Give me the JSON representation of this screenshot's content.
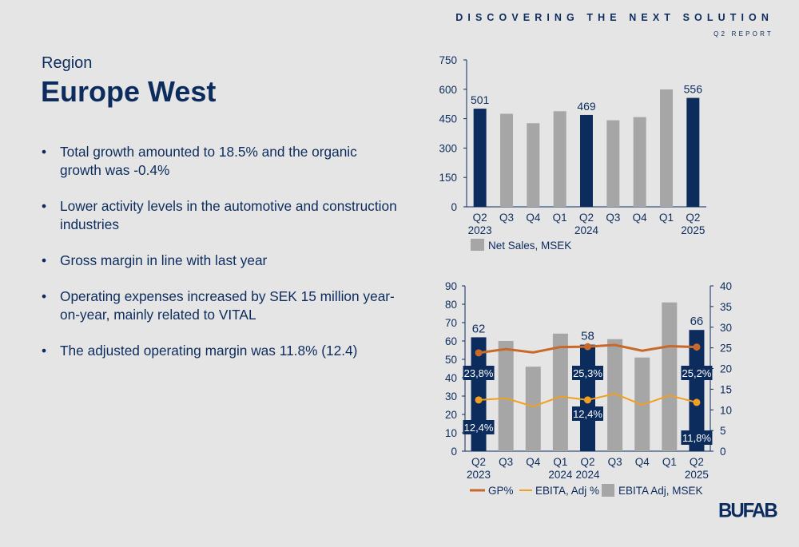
{
  "header": {
    "tagline": "DISCOVERING THE NEXT SOLUTION",
    "report": "Q2 REPORT"
  },
  "slide": {
    "region_label": "Region",
    "title": "Europe West",
    "bullets": [
      {
        "lines": [
          "Total growth amounted to 18.5% and the organic",
          "growth was -0.4%"
        ]
      },
      {
        "lines": [
          "Lower activity levels in the automotive and construction",
          "industries"
        ]
      },
      {
        "lines": [
          "Gross margin in line with last year"
        ]
      },
      {
        "lines": [
          "Operating expenses increased by SEK 15 million year-",
          "on-year, mainly related to VITAL"
        ]
      },
      {
        "lines": [
          "The adjusted operating margin was 11.8% (12.4)"
        ]
      }
    ],
    "bullet_glyph": "•"
  },
  "logo": {
    "text": "BUFAB"
  },
  "colors": {
    "navy": "#0d2c5e",
    "gray_bar": "#a6a6a6",
    "gp_line": "#c8692c",
    "ebita_line": "#f0a020",
    "background": "#e5e5e5"
  },
  "chart_data": [
    {
      "type": "bar",
      "title": "",
      "categories": [
        "Q2 2023",
        "Q3",
        "Q4",
        "Q1",
        "Q2 2024",
        "Q3",
        "Q4",
        "Q1",
        "Q2 2025"
      ],
      "category_lines": [
        [
          "Q2",
          "2023"
        ],
        [
          "Q3",
          ""
        ],
        [
          "Q4",
          ""
        ],
        [
          "Q1",
          ""
        ],
        [
          "Q2",
          "2024"
        ],
        [
          "Q3",
          ""
        ],
        [
          "Q4",
          ""
        ],
        [
          "Q1",
          ""
        ],
        [
          "Q2",
          "2025"
        ]
      ],
      "series": [
        {
          "name": "Net Sales, MSEK",
          "values": [
            501,
            475,
            427,
            488,
            469,
            442,
            458,
            599,
            556
          ]
        }
      ],
      "highlight": [
        true,
        false,
        false,
        false,
        true,
        false,
        false,
        false,
        true
      ],
      "data_labels": [
        "501",
        "",
        "",
        "",
        "469",
        "",
        "",
        "",
        "556"
      ],
      "ylim": [
        0,
        750
      ],
      "yticks": [
        0,
        150,
        300,
        450,
        600,
        750
      ],
      "xlabel": "",
      "ylabel": "",
      "legend": {
        "position": "bottom-left",
        "entries": [
          "Net Sales, MSEK"
        ]
      },
      "grid": false
    },
    {
      "type": "bar",
      "title": "",
      "categories": [
        "Q2 2023",
        "Q3",
        "Q4",
        "Q1 2024",
        "Q2 2024",
        "Q3",
        "Q4",
        "Q1",
        "Q2 2025"
      ],
      "category_lines": [
        [
          "Q2",
          "2023"
        ],
        [
          "Q3",
          ""
        ],
        [
          "Q4",
          ""
        ],
        [
          "Q1",
          "2024"
        ],
        [
          "Q2",
          "2024"
        ],
        [
          "Q3",
          ""
        ],
        [
          "Q4",
          ""
        ],
        [
          "Q1",
          ""
        ],
        [
          "Q2",
          "2025"
        ]
      ],
      "series": [
        {
          "name": "EBITA Adj, MSEK",
          "type": "bar",
          "axis": "left",
          "values": [
            62,
            60,
            46,
            64,
            58,
            61,
            51,
            81,
            66
          ]
        },
        {
          "name": "GP%",
          "type": "line",
          "axis": "right",
          "values": [
            23.8,
            24.7,
            23.9,
            25.2,
            25.3,
            25.7,
            24.3,
            25.4,
            25.2
          ]
        },
        {
          "name": "EBITA, Adj %",
          "type": "line",
          "axis": "right",
          "values": [
            12.4,
            12.8,
            10.8,
            13.2,
            12.4,
            13.9,
            11.2,
            13.5,
            11.8
          ]
        }
      ],
      "highlight": [
        true,
        false,
        false,
        false,
        true,
        false,
        false,
        false,
        true
      ],
      "bar_labels": [
        "62",
        "",
        "",
        "",
        "58",
        "",
        "",
        "",
        "66"
      ],
      "gp_labels": [
        "23,8%",
        "",
        "",
        "",
        "25,3%",
        "",
        "",
        "",
        "25,2%"
      ],
      "ebita_labels": [
        "12,4%",
        "",
        "",
        "",
        "12,4%",
        "",
        "",
        "",
        "11,8%"
      ],
      "ylim": [
        0,
        90
      ],
      "yticks": [
        0,
        10,
        20,
        30,
        40,
        50,
        60,
        70,
        80,
        90
      ],
      "y2lim": [
        0,
        40
      ],
      "y2ticks": [
        0,
        5,
        10,
        15,
        20,
        25,
        30,
        35,
        40
      ],
      "xlabel": "",
      "ylabel": "",
      "y2label": "",
      "legend": {
        "position": "bottom",
        "entries": [
          "GP%",
          "EBITA, Adj %",
          "EBITA Adj, MSEK"
        ]
      },
      "grid": false
    }
  ]
}
